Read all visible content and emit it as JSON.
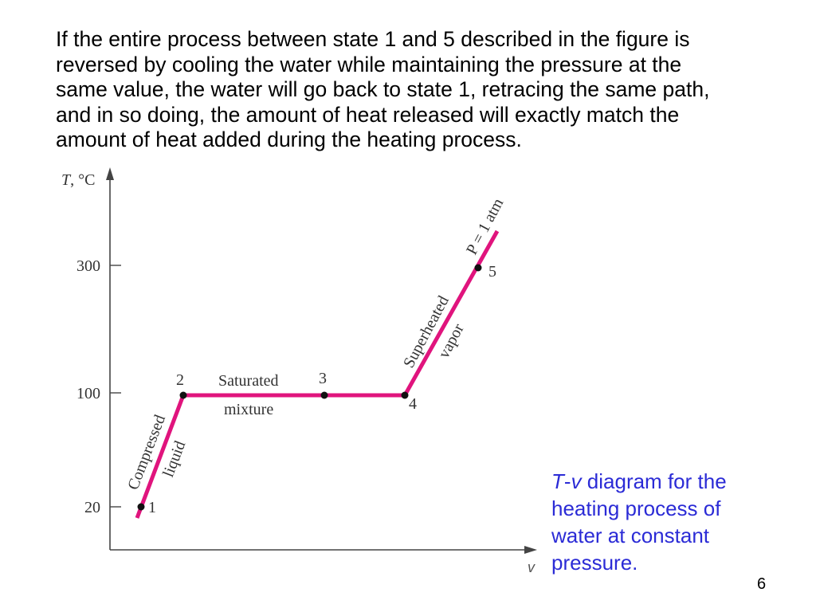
{
  "slide": {
    "paragraph_lines": [
      "If the entire process between state 1 and 5 described in the figure is",
      "reversed by cooling the water while maintaining the pressure at the",
      "same value, the water will go back to state 1, retracing the same path,",
      "and in so doing, the amount of heat released will exactly match the",
      "amount of heat added during the heating process."
    ],
    "caption": {
      "italic_prefix_t": "T",
      "dash": "-",
      "italic_prefix_v": "v",
      "line1_rest": " diagram for the",
      "line2": "heating process of",
      "line3": "water at constant",
      "line4": "pressure."
    },
    "page_number": "6"
  },
  "diagram": {
    "y_axis_label_t": "T",
    "y_axis_label_unit": ", °C",
    "x_axis_label": "v",
    "y_ticks": [
      "300",
      "100",
      "20"
    ],
    "states": [
      "1",
      "2",
      "3",
      "4",
      "5"
    ],
    "region_labels": {
      "compressed": "Compressed",
      "liquid": "liquid",
      "saturated": "Saturated",
      "mixture": "mixture",
      "superheated": "Superheated",
      "vapor": "vapor",
      "pressure": "P = 1 atm"
    },
    "line_color": "#e0147d"
  }
}
